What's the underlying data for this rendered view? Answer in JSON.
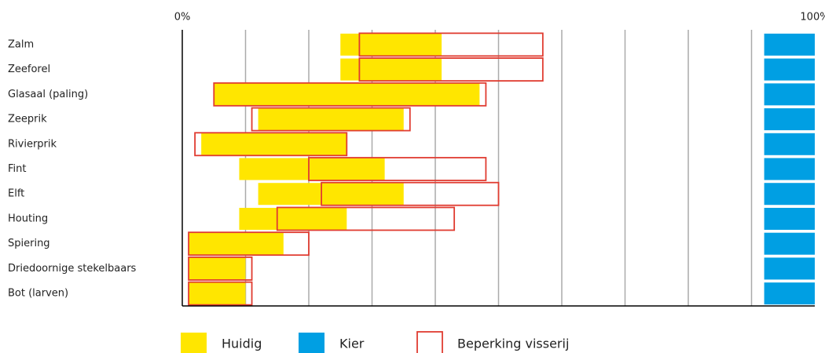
{
  "chart_data": {
    "type": "range-bar",
    "categories": [
      "Zalm",
      "Zeeforel",
      "Glasaal (paling)",
      "Zeeprik",
      "Rivierprik",
      "Fint",
      "Elft",
      "Houting",
      "Spiering",
      "Driedoornige stekelbaars",
      "Bot (larven)"
    ],
    "series": [
      {
        "name": "Huidig",
        "color": "#ffe600",
        "style": "fill",
        "values": [
          [
            25,
            41
          ],
          [
            25,
            41
          ],
          [
            5,
            47
          ],
          [
            12,
            35
          ],
          [
            3,
            26
          ],
          [
            9,
            32
          ],
          [
            12,
            35
          ],
          [
            9,
            26
          ],
          [
            1,
            16
          ],
          [
            1,
            10
          ],
          [
            1,
            10
          ]
        ]
      },
      {
        "name": "Kier",
        "color": "#009fe3",
        "style": "fill",
        "values": [
          [
            92,
            100
          ],
          [
            92,
            100
          ],
          [
            92,
            100
          ],
          [
            92,
            100
          ],
          [
            92,
            100
          ],
          [
            92,
            100
          ],
          [
            92,
            100
          ],
          [
            92,
            100
          ],
          [
            92,
            100
          ],
          [
            92,
            100
          ],
          [
            92,
            100
          ]
        ]
      },
      {
        "name": "Beperking visserij",
        "color": "#e03c31",
        "style": "outline",
        "values": [
          [
            28,
            57
          ],
          [
            28,
            57
          ],
          [
            5,
            48
          ],
          [
            11,
            36
          ],
          [
            2,
            26
          ],
          [
            20,
            48
          ],
          [
            22,
            50
          ],
          [
            15,
            43
          ],
          [
            1,
            20
          ],
          [
            1,
            11
          ],
          [
            1,
            11
          ]
        ]
      }
    ],
    "xlim": [
      0,
      100
    ],
    "xticks": [
      {
        "value": 0,
        "label": "0%"
      },
      {
        "value": 100,
        "label": "100%"
      }
    ],
    "xgrid": [
      10,
      20,
      30,
      40,
      50,
      60,
      70,
      80,
      90
    ],
    "grid": true
  }
}
